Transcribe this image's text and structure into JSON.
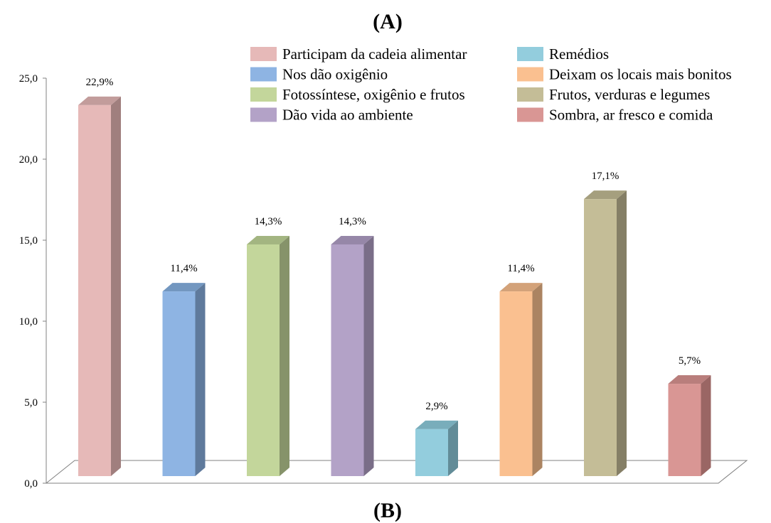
{
  "panel_label_top": "(A)",
  "panel_label_bottom": "(B)",
  "chart_data": {
    "type": "bar",
    "style": "3d-column",
    "categories": [
      "Participam da cadeia alimentar",
      "Nos dão oxigênio",
      "Fotossíntese, oxigênio e frutos",
      "Dão vida ao ambiente",
      "Remédios",
      "Deixam os locais mais bonitos",
      "Frutos, verduras e legumes",
      "Sombra, ar fresco e comida"
    ],
    "values": [
      22.9,
      11.4,
      14.3,
      14.3,
      2.9,
      11.4,
      17.1,
      5.7
    ],
    "data_labels": [
      "22,9%",
      "11,4%",
      "14,3%",
      "14,3%",
      "2,9%",
      "11,4%",
      "17,1%",
      "5,7%"
    ],
    "colors": [
      "#e6b9b8",
      "#8eb4e3",
      "#c3d69b",
      "#b3a2c7",
      "#93cddd",
      "#fac090",
      "#c4bd97",
      "#d99694"
    ],
    "side_colors": [
      "#a07f7e",
      "#5f7a9c",
      "#86936a",
      "#7a6e88",
      "#628c98",
      "#ab8462",
      "#857f66",
      "#9a6664"
    ],
    "top_colors": [
      "#c29c9b",
      "#7397c0",
      "#a3b581",
      "#9687a8",
      "#79adbb",
      "#d3a279",
      "#a59f7e",
      "#b97e7c"
    ],
    "ylim": [
      0,
      25
    ],
    "yticks": [
      "0,0",
      "5,0",
      "10,0",
      "15,0",
      "20,0",
      "25,0"
    ],
    "ytick_values": [
      0,
      5,
      10,
      15,
      20,
      25
    ],
    "legend_position": "top-right",
    "legend_columns": 2,
    "grid": false,
    "xlabel": "",
    "ylabel": ""
  }
}
